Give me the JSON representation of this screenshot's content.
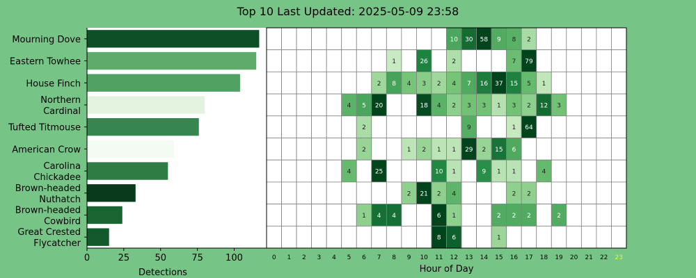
{
  "title": "Top 10 Last Updated: 2025-05-09 23:58",
  "colors": {
    "background": "#77c487",
    "panel": "#ffffff",
    "grid": "#808080",
    "highlight_tick": "#e8f03c"
  },
  "highlighted_hour": "23",
  "chart_data": [
    {
      "type": "bar",
      "orientation": "horizontal",
      "categories": [
        "Mourning Dove",
        "Eastern Towhee",
        "House Finch",
        "Northern\nCardinal",
        "Tufted Titmouse",
        "American Crow",
        "Carolina\nChickadee",
        "Brown-headed\nNuthatch",
        "Brown-headed\nCowbird",
        "Great Crested\nFlycatcher"
      ],
      "values": [
        117,
        115,
        104,
        80,
        76,
        59,
        55,
        33,
        24,
        15
      ],
      "bar_colors": [
        "#0e4f28",
        "#5fab6c",
        "#50a162",
        "#e4f3e0",
        "#378650",
        "#f4fbf2",
        "#2f7d45",
        "#0a3a1c",
        "#1a6530",
        "#12592c"
      ],
      "xlabel": "Detections",
      "xticks": [
        0,
        25,
        50,
        75,
        100
      ],
      "xlim": [
        0,
        122
      ]
    },
    {
      "type": "heatmap",
      "x": [
        "0",
        "1",
        "2",
        "3",
        "4",
        "5",
        "6",
        "7",
        "8",
        "9",
        "10",
        "11",
        "12",
        "13",
        "14",
        "15",
        "16",
        "17",
        "18",
        "19",
        "20",
        "21",
        "22",
        "23"
      ],
      "y": [
        "Mourning Dove",
        "Eastern Towhee",
        "House Finch",
        "Northern Cardinal",
        "Tufted Titmouse",
        "American Crow",
        "Carolina Chickadee",
        "Brown-headed Nuthatch",
        "Brown-headed Cowbird",
        "Great Crested Flycatcher"
      ],
      "xlabel": "Hour of Day",
      "values": [
        [
          null,
          null,
          null,
          null,
          null,
          null,
          null,
          null,
          null,
          null,
          null,
          null,
          10,
          30,
          58,
          9,
          8,
          2,
          null,
          null,
          null,
          null,
          null,
          null
        ],
        [
          null,
          null,
          null,
          null,
          null,
          null,
          null,
          null,
          1,
          null,
          26,
          null,
          2,
          null,
          null,
          null,
          7,
          79,
          null,
          null,
          null,
          null,
          null,
          null
        ],
        [
          null,
          null,
          null,
          null,
          null,
          null,
          null,
          2,
          8,
          4,
          3,
          2,
          4,
          7,
          16,
          37,
          15,
          5,
          1,
          null,
          null,
          null,
          null,
          null
        ],
        [
          null,
          null,
          null,
          null,
          null,
          4,
          5,
          20,
          null,
          null,
          18,
          4,
          2,
          3,
          3,
          1,
          3,
          2,
          12,
          3,
          null,
          null,
          null,
          null
        ],
        [
          null,
          null,
          null,
          null,
          null,
          null,
          2,
          null,
          null,
          null,
          null,
          null,
          null,
          9,
          null,
          null,
          1,
          64,
          null,
          null,
          null,
          null,
          null,
          null
        ],
        [
          null,
          null,
          null,
          null,
          null,
          null,
          2,
          null,
          null,
          1,
          2,
          1,
          1,
          29,
          2,
          15,
          6,
          null,
          null,
          null,
          null,
          null,
          null,
          null
        ],
        [
          null,
          null,
          null,
          null,
          null,
          4,
          null,
          25,
          null,
          null,
          null,
          10,
          1,
          null,
          9,
          1,
          1,
          null,
          4,
          null,
          null,
          null,
          null,
          null
        ],
        [
          null,
          null,
          null,
          null,
          null,
          null,
          null,
          null,
          null,
          2,
          21,
          2,
          4,
          null,
          null,
          null,
          2,
          2,
          null,
          null,
          null,
          null,
          null,
          null
        ],
        [
          null,
          null,
          null,
          null,
          null,
          null,
          1,
          4,
          4,
          null,
          null,
          6,
          1,
          null,
          null,
          2,
          2,
          2,
          null,
          2,
          null,
          null,
          null,
          null
        ],
        [
          null,
          null,
          null,
          null,
          null,
          null,
          null,
          null,
          null,
          null,
          null,
          8,
          6,
          null,
          null,
          1,
          null,
          null,
          null,
          null,
          null,
          null,
          null,
          null
        ]
      ]
    }
  ]
}
